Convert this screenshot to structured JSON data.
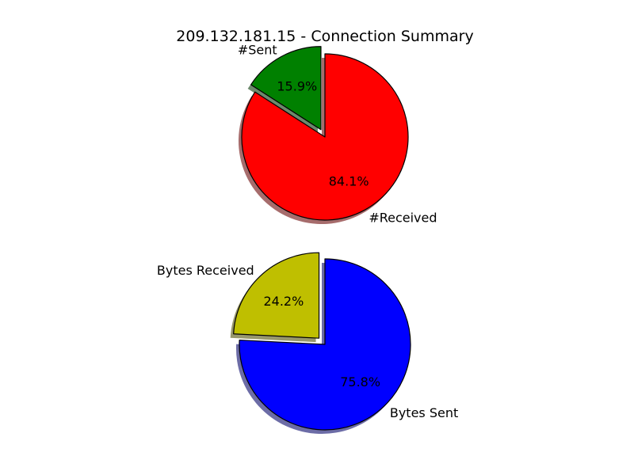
{
  "title": "209.132.181.15 - Connection Summary",
  "chart_data": [
    {
      "type": "pie",
      "labels": [
        "#Sent",
        "#Received"
      ],
      "values": [
        15.9,
        84.1
      ],
      "autopct": [
        "15.9%",
        "84.1%"
      ],
      "colors": [
        "#008000",
        "#ff0000"
      ],
      "explode": [
        true,
        false
      ],
      "shadow": true,
      "start_angle_deg": 90,
      "direction": "counterclockwise"
    },
    {
      "type": "pie",
      "labels": [
        "Bytes Received",
        "Bytes Sent"
      ],
      "values": [
        24.2,
        75.8
      ],
      "autopct": [
        "24.2%",
        "75.8%"
      ],
      "colors": [
        "#bfbf00",
        "#0000ff"
      ],
      "explode": [
        true,
        false
      ],
      "shadow": true,
      "start_angle_deg": 90,
      "direction": "counterclockwise"
    }
  ]
}
